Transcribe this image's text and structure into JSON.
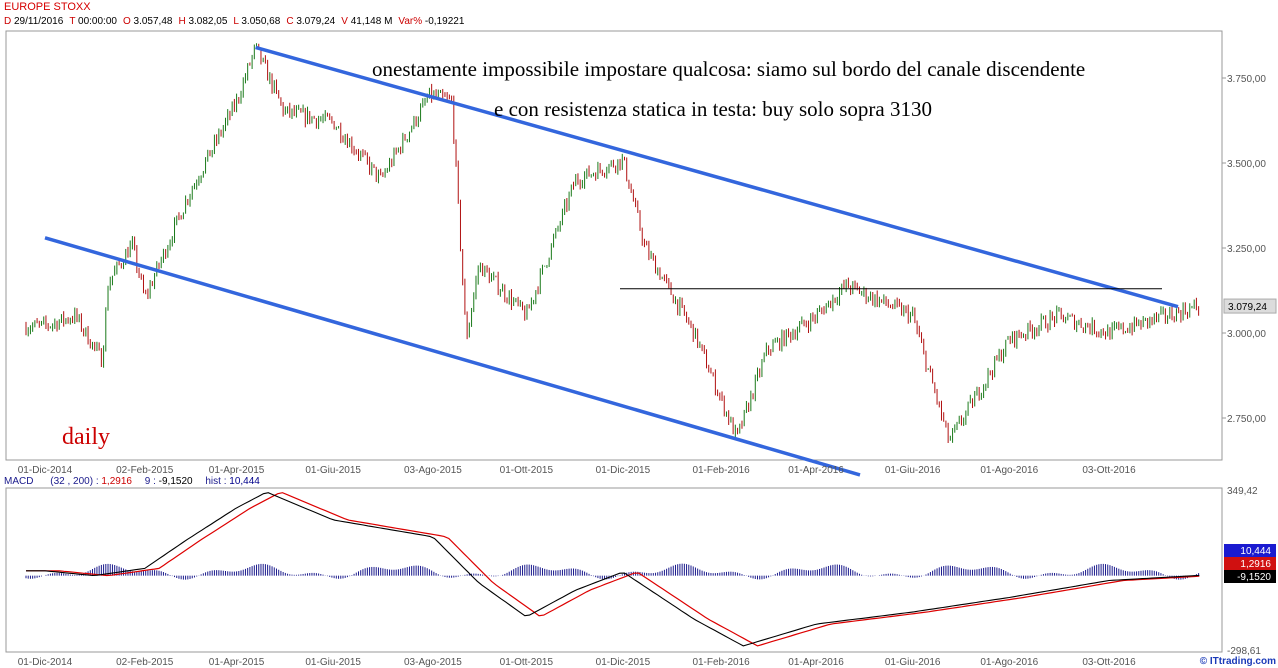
{
  "header": {
    "title": "EUROPE STOXX",
    "fields": [
      {
        "k": "D",
        "v": "29/11/2016"
      },
      {
        "k": "T",
        "v": "00:00:00"
      },
      {
        "k": "O",
        "v": "3.057,48"
      },
      {
        "k": "H",
        "v": "3.082,05"
      },
      {
        "k": "L",
        "v": "3.050,68"
      },
      {
        "k": "C",
        "v": "3.079,24"
      },
      {
        "k": "V",
        "v": "41,148 M"
      },
      {
        "k": "Var%",
        "v": "-0,19221"
      }
    ]
  },
  "macd_header": {
    "label": "MACD",
    "params": "(32 , 200) :",
    "macd": "1,2916",
    "signal_label": "9 :",
    "signal": "-9,1520",
    "hist_label": "hist :",
    "hist": "10,444"
  },
  "annotations": {
    "line1": "onestamente impossibile impostare qualcosa: siamo sul bordo del canale discendente",
    "line2": "e con resistenza statica in testa: buy solo sopra 3130",
    "daily": "daily"
  },
  "brand": "© ITtrading.com",
  "colors": {
    "up": "#1a7a1a",
    "down": "#b01010",
    "channel": "#3366dd",
    "macd": "#000000",
    "signal": "#dd0000",
    "hist": "#1a1a8c"
  },
  "chart_data": [
    {
      "type": "candlestick",
      "title": "EUROPE STOXX",
      "x_ticks": [
        "01-Dic-2014",
        "02-Feb-2015",
        "01-Apr-2015",
        "01-Giu-2015",
        "03-Ago-2015",
        "01-Ott-2015",
        "01-Dic-2015",
        "01-Feb-2016",
        "01-Apr-2016",
        "01-Giu-2016",
        "01-Ago-2016",
        "03-Ott-2016"
      ],
      "y_ticks": [
        "3.750,00",
        "3.500,00",
        "3.250,00",
        "3.000,00",
        "2.750,00"
      ],
      "y_tick_values": [
        3750,
        3500,
        3250,
        3000,
        2750
      ],
      "ylim": [
        2630,
        3920
      ],
      "last_price_label": "3.079,24",
      "last_price": 3079.24,
      "price_path": [
        [
          "01-Dic-2014",
          3020
        ],
        [
          "20-Dic-2014",
          3050
        ],
        [
          "10-Gen-2015",
          3150
        ],
        [
          "25-Gen-2015",
          3260
        ],
        [
          "06-Gen-2015",
          2920
        ],
        [
          "02-Feb-2015",
          3100
        ],
        [
          "01-Mar-2015",
          3400
        ],
        [
          "01-Apr-2015",
          3680
        ],
        [
          "13-Apr-2015",
          3840
        ],
        [
          "01-Mag-2015",
          3650
        ],
        [
          "01-Giu-2015",
          3620
        ],
        [
          "01-Lug-2015",
          3450
        ],
        [
          "01-Ago-2015",
          3700
        ],
        [
          "15-Ago-2015",
          3680
        ],
        [
          "01-Set-2015",
          3200
        ],
        [
          "24-Ago-2015",
          2980
        ],
        [
          "01-Ott-2015",
          3050
        ],
        [
          "01-Nov-2015",
          3450
        ],
        [
          "01-Dic-2015",
          3510
        ],
        [
          "15-Dic-2015",
          3250
        ],
        [
          "15-Gen-2016",
          3000
        ],
        [
          "11-Feb-2016",
          2690
        ],
        [
          "01-Mar-2016",
          2950
        ],
        [
          "01-Apr-2016",
          3050
        ],
        [
          "20-Apr-2016",
          3140
        ],
        [
          "01-Giu-2016",
          3050
        ],
        [
          "24-Giu-2016",
          2680
        ],
        [
          "01-Ago-2016",
          2980
        ],
        [
          "01-Set-2016",
          3050
        ],
        [
          "03-Ott-2016",
          3000
        ],
        [
          "29-Nov-2016",
          3079
        ]
      ],
      "channel_upper": [
        [
          "13-Apr-2015",
          3840
        ],
        [
          "29-Nov-2016",
          3060
        ]
      ],
      "channel_lower": [
        [
          "01-Dic-2014",
          3280
        ],
        [
          "01-Apr-2016",
          2620
        ]
      ],
      "resistance": 3130
    },
    {
      "type": "macd",
      "label": "MACD",
      "y_ticks": [
        "349,42",
        "-298,61"
      ],
      "ylim": [
        -298.61,
        349.42
      ],
      "value_labels": [
        "10,444",
        "1,2916",
        "-9,1520"
      ],
      "macd_path": [
        [
          "01-Dic-2014",
          20
        ],
        [
          "01-Gen-2015",
          0
        ],
        [
          "02-Feb-2015",
          30
        ],
        [
          "01-Mar-2015",
          150
        ],
        [
          "01-Apr-2015",
          280
        ],
        [
          "20-Apr-2015",
          345
        ],
        [
          "01-Giu-2015",
          230
        ],
        [
          "03-Ago-2015",
          160
        ],
        [
          "01-Set-2015",
          -30
        ],
        [
          "01-Ott-2015",
          -170
        ],
        [
          "01-Nov-2015",
          -60
        ],
        [
          "01-Dic-2015",
          15
        ],
        [
          "15-Gen-2016",
          -180
        ],
        [
          "15-Feb-2016",
          -290
        ],
        [
          "01-Apr-2016",
          -200
        ],
        [
          "01-Giu-2016",
          -150
        ],
        [
          "01-Ago-2016",
          -90
        ],
        [
          "03-Ott-2016",
          -20
        ],
        [
          "29-Nov-2016",
          1
        ]
      ]
    }
  ]
}
